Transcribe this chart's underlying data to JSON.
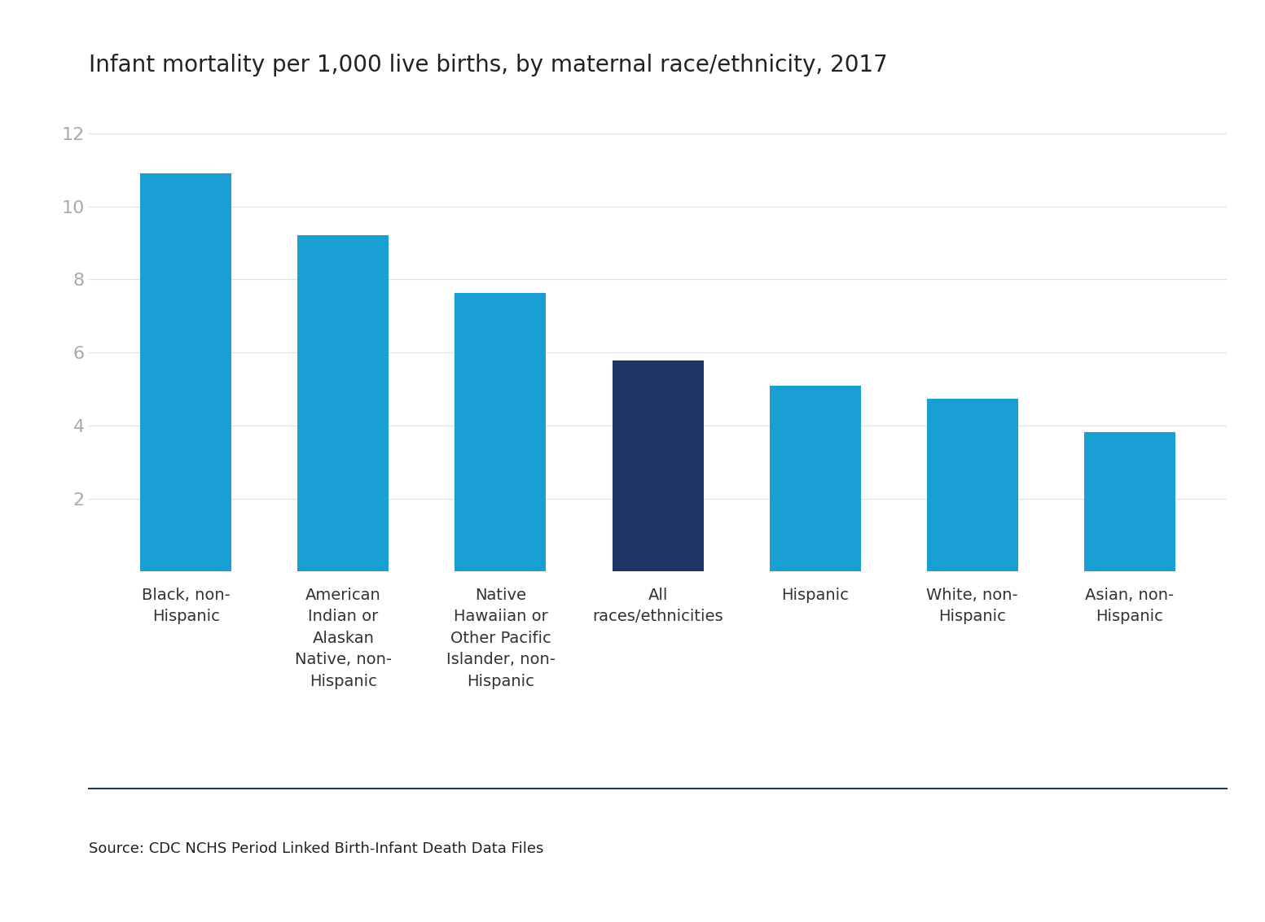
{
  "title": "Infant mortality per 1,000 live births, by maternal race/ethnicity, 2017",
  "categories": [
    "Black, non-\nHispanic",
    "American\nIndian or\nAlaskan\nNative, non-\nHispanic",
    "Native\nHawaiian or\nOther Pacific\nIslander, non-\nHispanic",
    "All\nraces/ethnicities",
    "Hispanic",
    "White, non-\nHispanic",
    "Asian, non-\nHispanic"
  ],
  "values": [
    10.9,
    9.22,
    7.63,
    5.79,
    5.09,
    4.73,
    3.82
  ],
  "bar_colors": [
    "#1a9fd4",
    "#1a9fd4",
    "#1a9fd4",
    "#1e3464",
    "#1a9fd4",
    "#1a9fd4",
    "#1a9fd4"
  ],
  "ylim": [
    0,
    13.0
  ],
  "yticks": [
    2,
    4,
    6,
    8,
    10,
    12
  ],
  "source_text": "Source: CDC NCHS Period Linked Birth-Infant Death Data Files",
  "title_fontsize": 20,
  "tick_fontsize": 16,
  "label_fontsize": 14,
  "source_fontsize": 13,
  "background_color": "#ffffff",
  "axis_color": "#aaaaaa",
  "title_color": "#222222",
  "source_color": "#222222",
  "separator_color": "#1e3464",
  "grid_color": "#e0e0e0",
  "bar_width": 0.58
}
